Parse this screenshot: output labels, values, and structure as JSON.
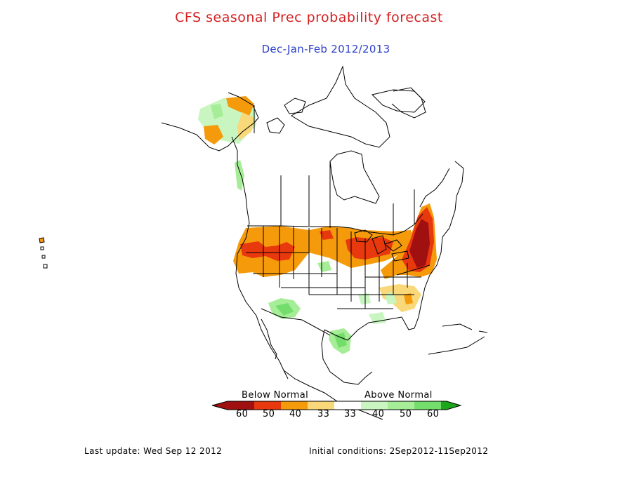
{
  "title": "CFS seasonal Prec probability forecast",
  "subtitle": "Dec-Jan-Feb 2012/2013",
  "colors": {
    "title": "#d42020",
    "subtitle": "#2a3fc8",
    "below_60": "#a01010",
    "below_50": "#e8380e",
    "below_40": "#f59a0a",
    "below_33": "#f8d878",
    "normal": "#ffffff",
    "above_33": "#c8f5c0",
    "above_40": "#a6ed98",
    "above_50": "#74de6c",
    "above_60": "#1ca61c",
    "outline": "#000000"
  },
  "legend": {
    "below_label": "Below Normal",
    "above_label": "Above Normal",
    "ticks": [
      "60",
      "50",
      "40",
      "33",
      "33",
      "40",
      "50",
      "60"
    ]
  },
  "footer": {
    "last_update": "Last update: Wed Sep 12 2012",
    "initial_conditions": "Initial conditions: 2Sep2012-11Sep2012"
  }
}
